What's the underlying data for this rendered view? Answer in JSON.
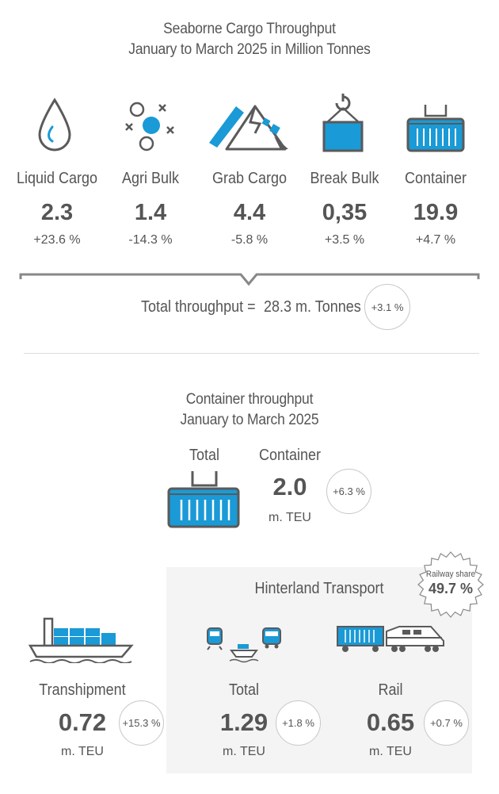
{
  "header": {
    "title_line1": "Seaborne Cargo Throughput",
    "title_line2": "January to March 2025 in Million Tonnes"
  },
  "categories": [
    {
      "label": "Liquid Cargo",
      "value": "2.3",
      "change": "+23.6 %",
      "icon": "liquid-drop-icon"
    },
    {
      "label": "Agri Bulk",
      "value": "1.4",
      "change": "-14.3 %",
      "icon": "agri-bulk-icon"
    },
    {
      "label": "Grab Cargo",
      "value": "4.4",
      "change": "-5.8 %",
      "icon": "grab-cargo-icon"
    },
    {
      "label": "Break Bulk",
      "value": "0,35",
      "change": "+3.5 %",
      "icon": "break-bulk-crane-icon"
    },
    {
      "label": "Container",
      "value": "19.9",
      "change": "+4.7 %",
      "icon": "container-icon"
    }
  ],
  "total": {
    "label": "Total throughput =",
    "value": "28.3 m. Tonnes",
    "change": "+3.1 %"
  },
  "container_section": {
    "title_line1": "Container throughput",
    "title_line2": "January to March 2025",
    "total_label": "Total",
    "container_label": "Container",
    "value": "2.0",
    "unit": "m. TEU",
    "change": "+6.3 %"
  },
  "hinterland": {
    "title": "Hinterland Transport",
    "railway_share_label": "Railway share",
    "railway_share_value": "49.7 %"
  },
  "transhipment": {
    "label": "Transhipment",
    "value": "0.72",
    "unit": "m. TEU",
    "change": "+15.3 %"
  },
  "hinterland_total": {
    "label": "Total",
    "value": "1.29",
    "unit": "m. TEU",
    "change": "+1.8 %"
  },
  "rail": {
    "label": "Rail",
    "value": "0.65",
    "unit": "m. TEU",
    "change": "+0.7 %"
  },
  "colors": {
    "accent_blue": "#1a9ad6",
    "icon_gray": "#5a5a5a",
    "text": "#555555",
    "panel": "#f4f4f4"
  }
}
